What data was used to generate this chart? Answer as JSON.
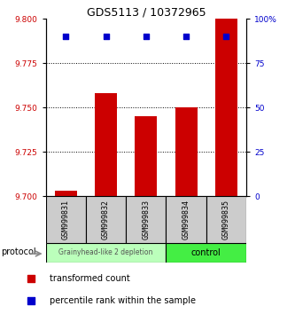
{
  "title": "GDS5113 / 10372965",
  "samples": [
    "GSM999831",
    "GSM999832",
    "GSM999833",
    "GSM999834",
    "GSM999835"
  ],
  "bar_values": [
    9.703,
    9.758,
    9.745,
    9.75,
    9.8
  ],
  "percentile_values": [
    90,
    90,
    90,
    90,
    90
  ],
  "ylim_left": [
    9.7,
    9.8
  ],
  "ylim_right": [
    0,
    100
  ],
  "yticks_left": [
    9.7,
    9.725,
    9.75,
    9.775,
    9.8
  ],
  "yticks_right": [
    0,
    25,
    50,
    75,
    100
  ],
  "ytick_labels_right": [
    "0",
    "25",
    "50",
    "75",
    "100%"
  ],
  "grid_values": [
    9.725,
    9.75,
    9.775
  ],
  "bar_color": "#cc0000",
  "percentile_color": "#0000cc",
  "group1_indices": [
    0,
    1,
    2
  ],
  "group2_indices": [
    3,
    4
  ],
  "group1_label": "Grainyhead-like 2 depletion",
  "group2_label": "control",
  "group1_color": "#bbffbb",
  "group2_color": "#44ee44",
  "protocol_label": "protocol",
  "legend_bar_label": "transformed count",
  "legend_pct_label": "percentile rank within the sample",
  "bar_width": 0.55,
  "sample_box_color": "#cccccc"
}
